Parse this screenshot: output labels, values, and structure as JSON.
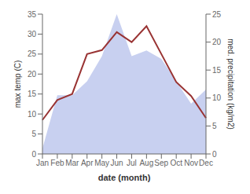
{
  "chart_data": {
    "type": "line",
    "xlabel": "date (month)",
    "ylabel": "max temp (C)",
    "y2label": "med. precipitation (kg/m2)",
    "categories": [
      "Jan",
      "Feb",
      "Mar",
      "Apr",
      "May",
      "Jun",
      "Jul",
      "Aug",
      "Sep",
      "Oct",
      "Nov",
      "Dec"
    ],
    "series": [
      {
        "type": "area",
        "axis": "y2",
        "color": "#c8d0f0",
        "values": [
          1.0,
          10.5,
          10.5,
          13.0,
          17.5,
          25.0,
          17.5,
          18.5,
          17.0,
          13.0,
          9.0,
          11.5
        ]
      },
      {
        "type": "line",
        "color": "#993333",
        "values": [
          8.5,
          13.5,
          15.0,
          25.0,
          26.0,
          30.5,
          28.0,
          32.0,
          25.0,
          18.0,
          14.5,
          9.0
        ]
      }
    ],
    "ylim": [
      0,
      35
    ],
    "yticks": [
      0,
      5,
      10,
      15,
      20,
      25,
      30,
      35
    ],
    "y2lim": [
      0,
      25
    ],
    "y2ticks": [
      0,
      5,
      10,
      15,
      20,
      25
    ],
    "grid": false
  }
}
